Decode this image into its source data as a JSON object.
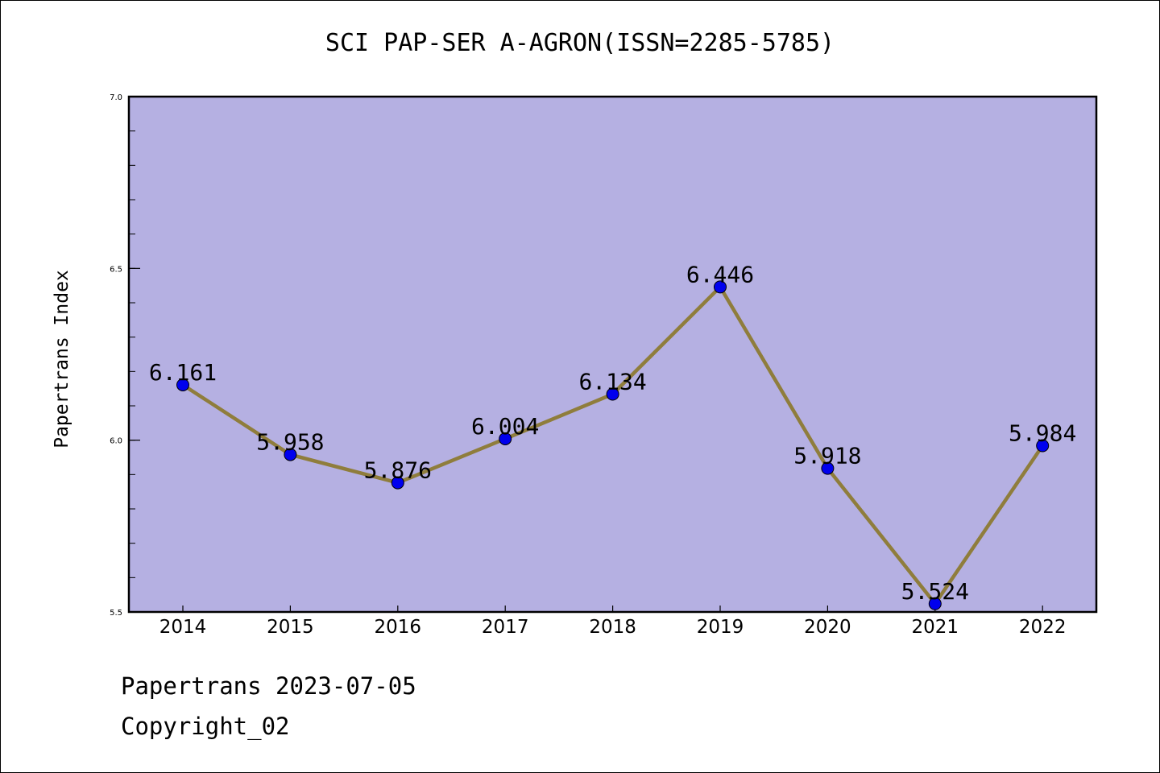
{
  "chart_data": {
    "type": "line",
    "title": "SCI PAP-SER A-AGRON(ISSN=2285-5785)",
    "ylabel": "Papertrans Index",
    "xlabel": "",
    "categories": [
      "2014",
      "2015",
      "2016",
      "2017",
      "2018",
      "2019",
      "2020",
      "2021",
      "2022"
    ],
    "values": [
      6.161,
      5.958,
      5.876,
      6.004,
      6.134,
      6.446,
      5.918,
      5.524,
      5.984
    ],
    "data_labels": [
      "6.161",
      "5.958",
      "5.876",
      "6.004",
      "6.134",
      "6.446",
      "5.918",
      "5.524",
      "5.984"
    ],
    "ylim": [
      5.5,
      7.0
    ],
    "yticks": [
      5.5,
      6.0,
      6.5,
      7.0
    ],
    "ytick_labels": [
      "5.5",
      "6.0",
      "6.5",
      "7.0"
    ],
    "yminor_step": 0.1,
    "grid": false,
    "colors": {
      "plot_background": "#b5b0e2",
      "line": "#8f7d3c",
      "marker": "#0000ee"
    }
  },
  "footer": {
    "date_line": "Papertrans 2023-07-05",
    "copyright_line": "Copyright_02"
  }
}
